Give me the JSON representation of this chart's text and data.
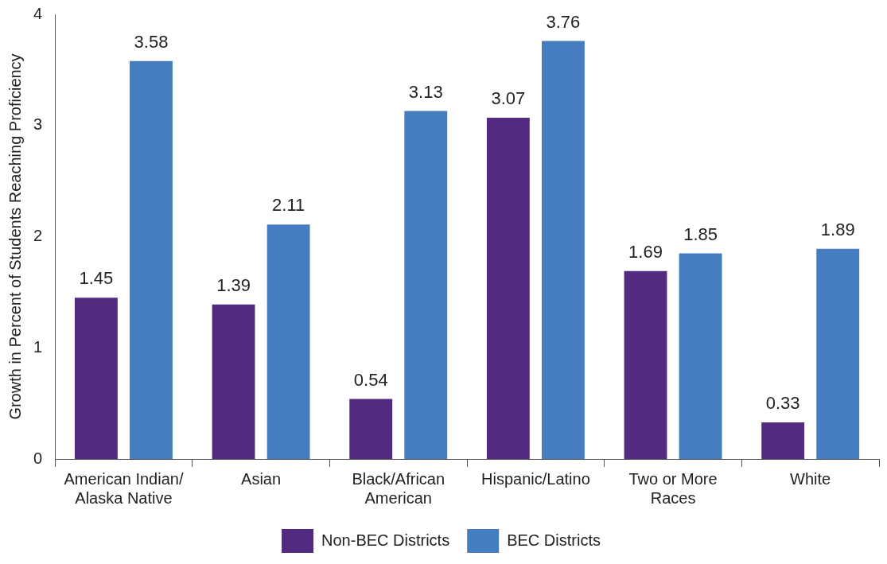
{
  "chart_data": {
    "type": "bar",
    "ylabel": "Growth in Percent of Students Reaching Proficiency",
    "categories": [
      "American Indian/\nAlaska Native",
      "Asian",
      "Black/African\nAmerican",
      "Hispanic/Latino",
      "Two or More\nRaces",
      "White"
    ],
    "series": [
      {
        "name": "Non-BEC Districts",
        "color": "#522a82",
        "values": [
          1.45,
          1.39,
          0.54,
          3.07,
          1.69,
          0.33
        ]
      },
      {
        "name": "BEC Districts",
        "color": "#467cc0",
        "values": [
          3.58,
          2.11,
          3.13,
          3.76,
          1.85,
          1.89
        ]
      }
    ],
    "ylim": [
      0,
      4
    ],
    "yticks": [
      0,
      1,
      2,
      3,
      4
    ],
    "data_labels": true,
    "legend": "bottom"
  }
}
